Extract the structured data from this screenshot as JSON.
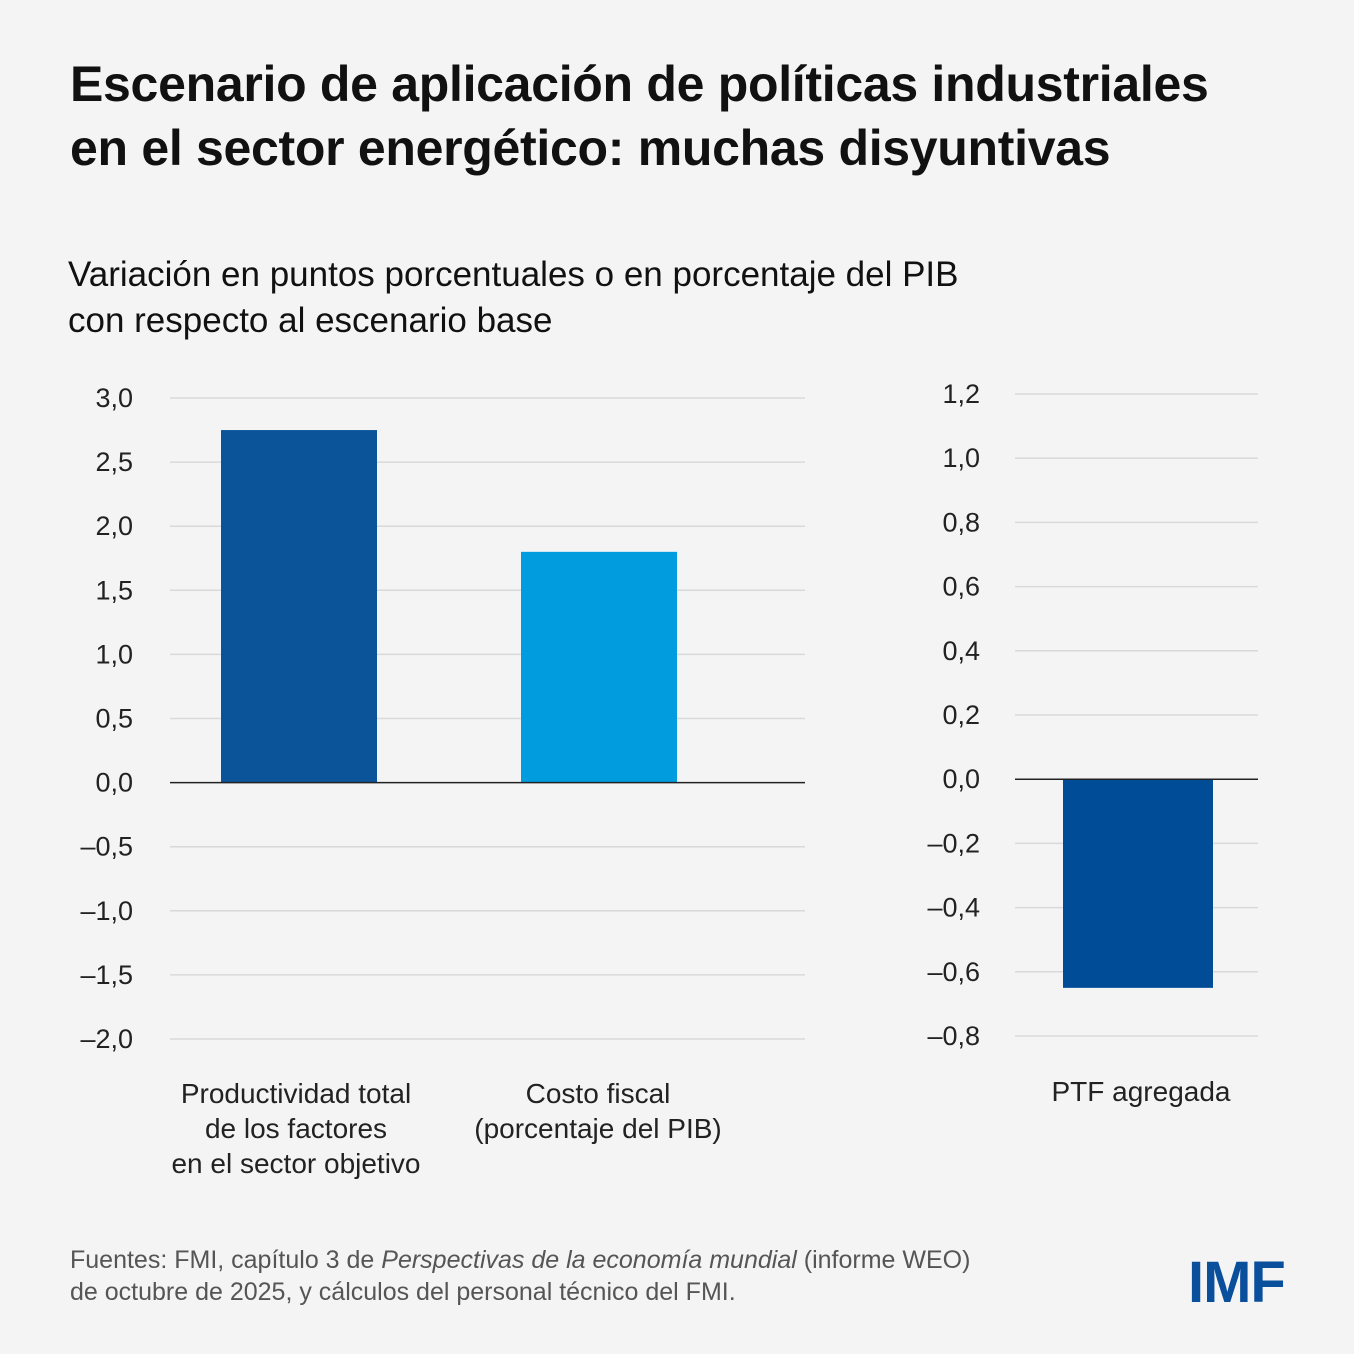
{
  "title": [
    "Escenario de aplicación de políticas industriales",
    "en el sector energético: muchas disyuntivas"
  ],
  "subtitle": [
    "Variación en puntos porcentuales o en porcentaje del PIB",
    "con respecto al escenario base"
  ],
  "chart_data": [
    {
      "type": "bar",
      "categories": [
        [
          "Productividad total",
          "de los factores",
          "en el sector objetivo"
        ],
        [
          "Costo fiscal",
          "(porcentaje del PIB)"
        ]
      ],
      "values": [
        2.75,
        1.8
      ],
      "colors": [
        "#0b5499",
        "#009cde"
      ],
      "ylim": [
        -2.0,
        3.0
      ],
      "yticks": [
        3.0,
        2.5,
        2.0,
        1.5,
        1.0,
        0.5,
        0.0,
        -0.5,
        -1.0,
        -1.5,
        -2.0
      ],
      "ytick_labels": [
        "3,0",
        "2,5",
        "2,0",
        "1,5",
        "1,0",
        "0,5",
        "0,0",
        "–0,5",
        "–1,0",
        "–1,5",
        "–2,0"
      ],
      "grid": true
    },
    {
      "type": "bar",
      "categories": [
        [
          "PTF agregada"
        ]
      ],
      "values": [
        -0.65
      ],
      "colors": [
        "#004c97"
      ],
      "ylim": [
        -0.8,
        1.2
      ],
      "yticks": [
        1.2,
        1.0,
        0.8,
        0.6,
        0.4,
        0.2,
        0.0,
        -0.2,
        -0.4,
        -0.6,
        -0.8
      ],
      "ytick_labels": [
        "1,2",
        "1,0",
        "0,8",
        "0,6",
        "0,4",
        "0,2",
        "0,0",
        "–0,2",
        "–0,4",
        "–0,6",
        "–0,8"
      ],
      "grid": true
    }
  ],
  "source": {
    "prefix": "Fuentes: FMI, capítulo 3 de ",
    "italic": "Perspectivas de la economía mundial",
    "suffix": " (informe WEO)",
    "line2": "de octubre de 2025, y cálculos del personal técnico del FMI."
  },
  "logo": "IMF"
}
